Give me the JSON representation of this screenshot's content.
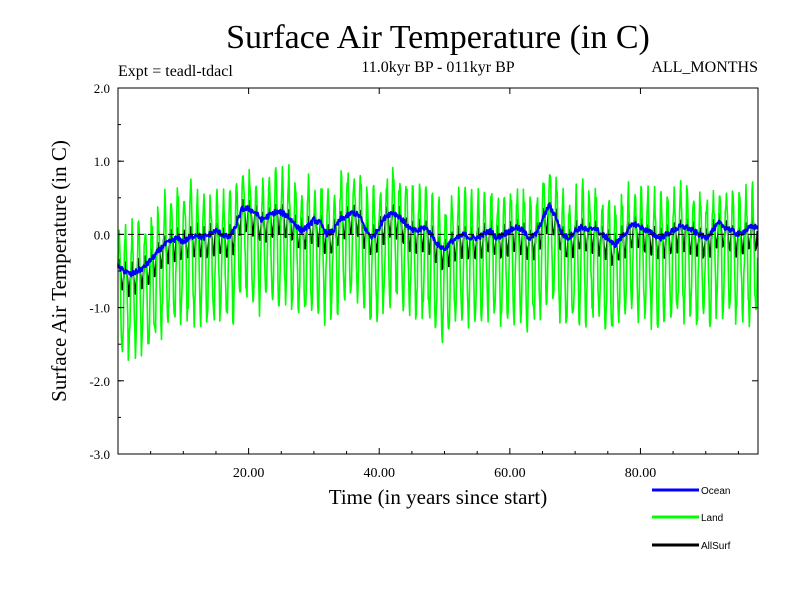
{
  "chart_data": {
    "type": "line",
    "title": "Surface Air Temperature (in C)",
    "subtitle": "11.0kyr BP - 011kyr BP",
    "expt_label": "Expt = teadl-tdacl",
    "period_label": "ALL_MONTHS",
    "xlabel": "Time (in years since start)",
    "ylabel": "Surface Air Temperature (in C)",
    "xlim": [
      0,
      98
    ],
    "ylim": [
      -3.0,
      2.0
    ],
    "x_ticks": [
      20,
      40,
      60,
      80
    ],
    "x_tick_labels": [
      "20.00",
      "40.00",
      "60.00",
      "80.00"
    ],
    "y_ticks": [
      -3,
      -2,
      -1,
      0,
      1,
      2
    ],
    "y_tick_labels": [
      "-3.0",
      "-2.0",
      "-1.0",
      "0.0",
      "1.0",
      "2.0"
    ],
    "reference_line": 0.0,
    "samples_per_year": 12,
    "series": [
      {
        "name": "Ocean",
        "color": "#0000ff",
        "annual_mean": [
          -0.45,
          -0.5,
          -0.55,
          -0.5,
          -0.45,
          -0.35,
          -0.25,
          -0.15,
          -0.1,
          -0.05,
          -0.1,
          -0.05,
          0.0,
          -0.05,
          0.0,
          0.05,
          0.0,
          -0.05,
          0.1,
          0.35,
          0.35,
          0.3,
          0.2,
          0.25,
          0.3,
          0.3,
          0.25,
          0.15,
          0.05,
          0.1,
          0.2,
          0.15,
          0.0,
          0.05,
          0.2,
          0.25,
          0.3,
          0.25,
          0.05,
          -0.05,
          0.1,
          0.25,
          0.3,
          0.25,
          0.15,
          0.05,
          0.05,
          0.1,
          0.0,
          -0.15,
          -0.2,
          -0.1,
          -0.05,
          0.0,
          -0.05,
          -0.05,
          0.0,
          0.05,
          -0.05,
          0.0,
          0.05,
          0.1,
          0.05,
          -0.05,
          0.0,
          0.2,
          0.4,
          0.25,
          0.0,
          -0.05,
          0.05,
          0.1,
          0.05,
          0.1,
          0.0,
          -0.05,
          -0.15,
          -0.05,
          0.05,
          0.15,
          0.1,
          0.05,
          0.0,
          -0.05,
          0.0,
          0.05,
          0.1,
          0.1,
          0.05,
          0.0,
          -0.05,
          0.05,
          0.15,
          0.1,
          0.05,
          0.0,
          0.05,
          0.1
        ]
      },
      {
        "name": "Land",
        "color": "#00ff00",
        "annual_mean": [
          -0.8,
          -0.75,
          -0.8,
          -0.7,
          -0.75,
          -0.65,
          -0.5,
          -0.4,
          -0.3,
          -0.3,
          -0.3,
          -0.25,
          -0.3,
          -0.25,
          -0.35,
          -0.3,
          -0.3,
          -0.35,
          -0.2,
          0.05,
          0.0,
          -0.1,
          -0.15,
          -0.1,
          -0.05,
          0.0,
          -0.05,
          -0.15,
          -0.2,
          -0.2,
          -0.15,
          -0.2,
          -0.25,
          -0.2,
          -0.1,
          -0.05,
          0.0,
          -0.05,
          -0.2,
          -0.3,
          -0.2,
          -0.1,
          0.0,
          -0.05,
          -0.15,
          -0.2,
          -0.25,
          -0.2,
          -0.3,
          -0.45,
          -0.5,
          -0.4,
          -0.35,
          -0.35,
          -0.35,
          -0.35,
          -0.3,
          -0.25,
          -0.35,
          -0.3,
          -0.3,
          -0.25,
          -0.3,
          -0.35,
          -0.3,
          -0.15,
          0.0,
          -0.1,
          -0.3,
          -0.35,
          -0.3,
          -0.25,
          -0.3,
          -0.25,
          -0.35,
          -0.4,
          -0.45,
          -0.35,
          -0.3,
          -0.2,
          -0.25,
          -0.3,
          -0.3,
          -0.35,
          -0.3,
          -0.3,
          -0.25,
          -0.25,
          -0.3,
          -0.3,
          -0.35,
          -0.3,
          -0.2,
          -0.25,
          -0.3,
          -0.3,
          -0.3,
          -0.25
        ],
        "seasonal_amplitude": 0.85
      },
      {
        "name": "AllSurf",
        "color": "#000000",
        "annual_mean": [
          -0.55,
          -0.58,
          -0.63,
          -0.56,
          -0.53,
          -0.44,
          -0.32,
          -0.22,
          -0.16,
          -0.12,
          -0.16,
          -0.11,
          -0.08,
          -0.11,
          -0.1,
          -0.05,
          -0.08,
          -0.13,
          0.01,
          0.26,
          0.25,
          0.18,
          0.09,
          0.14,
          0.2,
          0.21,
          0.16,
          0.06,
          -0.03,
          0.01,
          0.1,
          0.05,
          -0.07,
          -0.03,
          0.11,
          0.16,
          0.21,
          0.16,
          -0.02,
          -0.12,
          0.02,
          0.15,
          0.21,
          0.16,
          0.06,
          -0.03,
          -0.04,
          0.01,
          -0.08,
          -0.23,
          -0.28,
          -0.18,
          -0.13,
          -0.09,
          -0.13,
          -0.13,
          -0.08,
          -0.03,
          -0.13,
          -0.08,
          -0.04,
          0.0,
          -0.05,
          -0.14,
          -0.09,
          0.1,
          0.28,
          0.15,
          -0.09,
          -0.14,
          -0.06,
          0.0,
          -0.05,
          0.0,
          -0.1,
          -0.15,
          -0.24,
          -0.14,
          -0.05,
          0.05,
          0.0,
          -0.05,
          -0.09,
          -0.14,
          -0.09,
          -0.05,
          0.0,
          0.0,
          -0.05,
          -0.09,
          -0.14,
          -0.05,
          0.05,
          0.0,
          -0.05,
          -0.09,
          -0.05,
          0.0
        ],
        "seasonal_amplitude": 0.2
      }
    ],
    "legend_position": "bottom-right"
  }
}
